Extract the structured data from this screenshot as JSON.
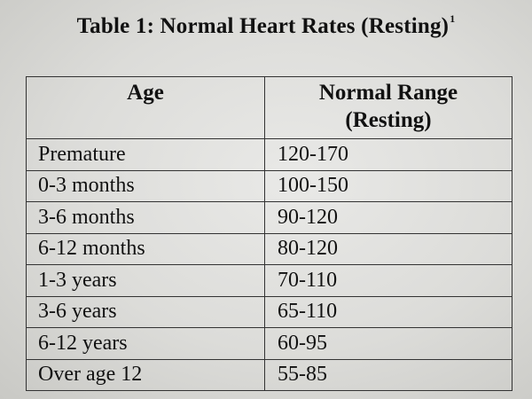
{
  "title": {
    "text": "Table 1:  Normal Heart Rates (Resting)",
    "footnote": "1"
  },
  "table": {
    "headers": {
      "age": "Age",
      "range_line1": "Normal Range",
      "range_line2": "(Resting)"
    },
    "rows": [
      {
        "age": "Premature",
        "range": "120-170"
      },
      {
        "age": "0-3 months",
        "range": "100-150"
      },
      {
        "age": "3-6 months",
        "range": "90-120"
      },
      {
        "age": "6-12 months",
        "range": "80-120"
      },
      {
        "age": "1-3 years",
        "range": "70-110"
      },
      {
        "age": "3-6 years",
        "range": "65-110"
      },
      {
        "age": "6-12 years",
        "range": "60-95"
      },
      {
        "age": "Over age 12",
        "range": "55-85"
      }
    ]
  }
}
